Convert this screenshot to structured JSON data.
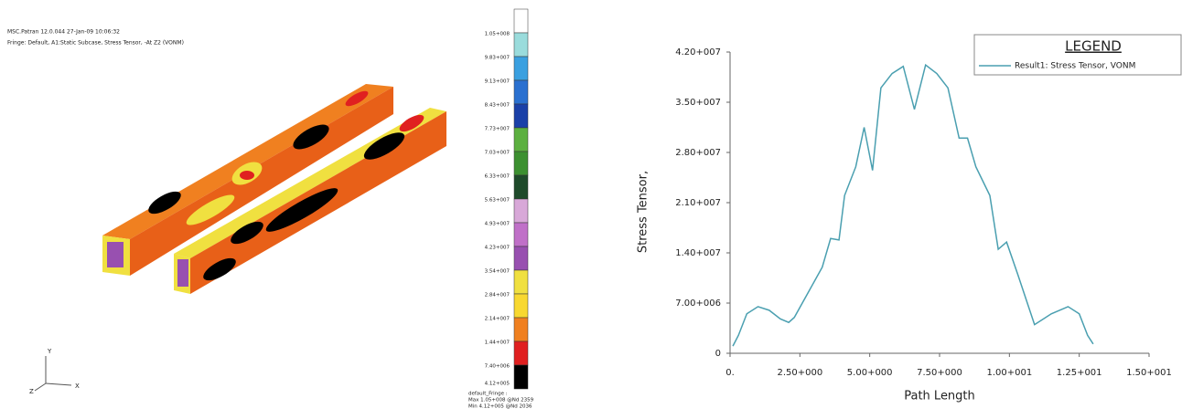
{
  "fringe_plot": {
    "header": [
      "MSC.Patran 12.0.044 27-Jan-09 10:06:32",
      "Fringe: Default, A1:Static Subcase, Stress Tensor, -At Z2 (VONM)"
    ],
    "scale_labels": [
      "1.05+008",
      "9.83+007",
      "9.13+007",
      "8.43+007",
      "7.73+007",
      "7.03+007",
      "6.33+007",
      "5.63+007",
      "4.93+007",
      "4.23+007",
      "3.54+007",
      "2.84+007",
      "2.14+007",
      "1.44+007",
      "7.40+006",
      "4.12+005"
    ],
    "colors": [
      "#ffffff",
      "#9adcdc",
      "#3aa0e0",
      "#2a70d0",
      "#1a40a8",
      "#5cb040",
      "#3c9030",
      "#1e4a2a",
      "#d8a8d8",
      "#c070c8",
      "#9850b0",
      "#f0e040",
      "#f8d830",
      "#f08020",
      "#e02020",
      "#000000"
    ],
    "footer": [
      "default_Fringe :",
      "Max 1.05+008 @Nd 2359",
      "Min 4.12+005 @Nd 2036"
    ],
    "axes": [
      "Y",
      "X",
      "Z"
    ]
  },
  "chart_data": {
    "type": "line",
    "x_label": "Path Length",
    "y_label": "Stress Tensor,",
    "legend_title": "LEGEND",
    "legend": "top-right",
    "xlim": [
      0,
      15
    ],
    "ylim": [
      0,
      42000000
    ],
    "xticks": [
      {
        "value": 0,
        "label": "0."
      },
      {
        "value": 2.5,
        "label": "2.50+000"
      },
      {
        "value": 5,
        "label": "5.00+000"
      },
      {
        "value": 7.5,
        "label": "7.50+000"
      },
      {
        "value": 10,
        "label": "1.00+001"
      },
      {
        "value": 12.5,
        "label": "1.25+001"
      },
      {
        "value": 15,
        "label": "1.50+001"
      }
    ],
    "yticks": [
      0,
      {
        "value": 7000000,
        "label": "7.00+006"
      },
      {
        "value": 14000000,
        "label": "1.40+007"
      },
      {
        "value": 21000000,
        "label": "2.10+007"
      },
      {
        "value": 28000000,
        "label": "2.80+007"
      },
      {
        "value": 35000000,
        "label": "3.50+007"
      },
      {
        "value": 42000000,
        "label": "4.20+007"
      }
    ],
    "x": [
      0.1,
      0.3,
      0.6,
      1.0,
      1.4,
      1.8,
      2.1,
      2.3,
      2.8,
      3.3,
      3.6,
      3.9,
      4.1,
      4.5,
      4.8,
      5.1,
      5.4,
      5.8,
      6.2,
      6.6,
      7.0,
      7.4,
      7.8,
      8.2,
      8.5,
      8.8,
      9.3,
      9.6,
      9.9,
      10.3,
      10.9,
      11.5,
      12.1,
      12.5,
      12.8,
      13.0
    ],
    "series": [
      {
        "name": "Result1: Stress Tensor, VONM",
        "color": "#4a9fb0",
        "values": [
          1000000,
          2500000,
          5500000,
          6500000,
          6000000,
          4800000,
          4300000,
          5000000,
          8500000,
          12000000,
          16000000,
          15800000,
          22000000,
          26000000,
          31500000,
          25500000,
          37000000,
          39000000,
          40000000,
          34000000,
          40200000,
          39000000,
          37000000,
          30000000,
          30000000,
          26000000,
          22000000,
          14500000,
          15500000,
          11000000,
          4000000,
          5500000,
          6500000,
          5500000,
          2500000,
          1300000
        ]
      }
    ]
  }
}
